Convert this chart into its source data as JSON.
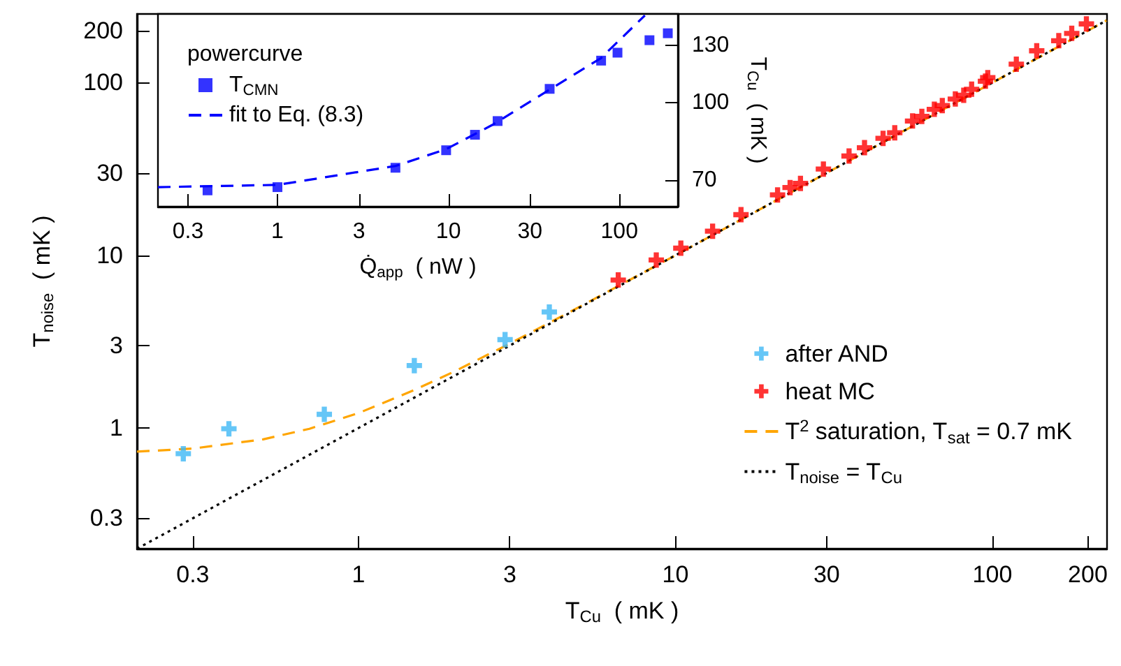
{
  "chart_data": [
    {
      "type": "scatter",
      "xlabel": "T$_{Cu}$  ( mK )",
      "ylabel": "T$_{noise}$  ( mK )",
      "log": "xy",
      "grid": false,
      "legend": "bottom right",
      "xlim": [
        0.2,
        230
      ],
      "ylim": [
        0.2,
        250
      ],
      "xticks": [
        0.3,
        1,
        3,
        10,
        30,
        100,
        200
      ],
      "yticks": [
        0.3,
        1,
        3,
        10,
        30,
        100,
        200
      ],
      "series": [
        {
          "name": "after AND",
          "marker": "cross",
          "color": "#3fb8f5",
          "x": [
            0.28,
            0.39,
            0.78,
            1.5,
            2.9,
            4.0
          ],
          "values": [
            0.71,
            0.99,
            1.2,
            2.3,
            3.25,
            4.7
          ]
        },
        {
          "name": "heat MC",
          "marker": "cross",
          "color": "#ff0000",
          "x": [
            6.6,
            8.7,
            10.4,
            13.1,
            16.1,
            21.0,
            23.0,
            24.8,
            29.3,
            35.3,
            39.5,
            45.2,
            49.2,
            56.0,
            59.9,
            65.6,
            69.5,
            76.4,
            81.2,
            86.0,
            95.1,
            96.7,
            119,
            138,
            162,
            178,
            198
          ],
          "values": [
            7.2,
            9.4,
            11.0,
            13.8,
            17.2,
            22.4,
            24.7,
            26.1,
            31.6,
            37.6,
            42.0,
            47.6,
            51.3,
            60.0,
            63.8,
            70.1,
            73.7,
            80.4,
            84.6,
            91.6,
            102,
            107,
            128,
            153,
            175,
            193,
            219
          ]
        },
        {
          "name": "T$^{2}$ saturation, T$_{sat}$ = 0.7 mK",
          "type": "line",
          "marker": "none",
          "line_style": "dashed",
          "color": "#ffa500",
          "x": [
            0.2,
            0.3,
            0.5,
            0.7,
            1,
            1.5,
            2,
            3,
            5,
            10,
            30,
            100,
            230
          ],
          "values": [
            0.73,
            0.76,
            0.86,
            0.99,
            1.22,
            1.66,
            2.12,
            3.08,
            5.05,
            10.0,
            30,
            100,
            230
          ]
        },
        {
          "name": "T$_{noise}$ = T$_{Cu}$",
          "type": "line",
          "marker": "none",
          "line_style": "dotted",
          "color": "#000000",
          "x": [
            0.2,
            230
          ],
          "values": [
            0.2,
            230
          ]
        }
      ]
    },
    {
      "type": "scatter",
      "xlabel": "Q̇$_{app}$  ( nW )",
      "ylabel": "T$_{Cu}$  ( mK )",
      "log": "xy",
      "grid": false,
      "legend": "top left",
      "legend_title": "powercurve",
      "xlim": [
        0.2,
        220
      ],
      "ylim": [
        62,
        150
      ],
      "xticks": [
        0.3,
        1,
        3,
        10,
        30,
        100
      ],
      "yticks": [
        70,
        100,
        130
      ],
      "series": [
        {
          "name": "T$_{CMN}$",
          "marker": "square",
          "color": "#0000ff",
          "x": [
            0.39,
            1.0,
            4.9,
            9.7,
            14.3,
            19.4,
            39.1,
            78.2,
            97.5,
            150,
            192
          ],
          "values": [
            66.8,
            67.8,
            74.1,
            80.3,
            86.2,
            91.8,
            106.4,
            121.1,
            125.6,
            133.0,
            137.3
          ]
        },
        {
          "name": "fit to Eq. (8.3)",
          "type": "line",
          "marker": "none",
          "line_style": "dashed",
          "color": "#0000ff",
          "x": [
            0.2,
            1,
            4.9,
            9.7,
            18.2,
            39,
            78,
            141
          ],
          "values": [
            67.8,
            68.5,
            74.7,
            80.7,
            90.3,
            106,
            122.5,
            149
          ]
        }
      ]
    }
  ]
}
